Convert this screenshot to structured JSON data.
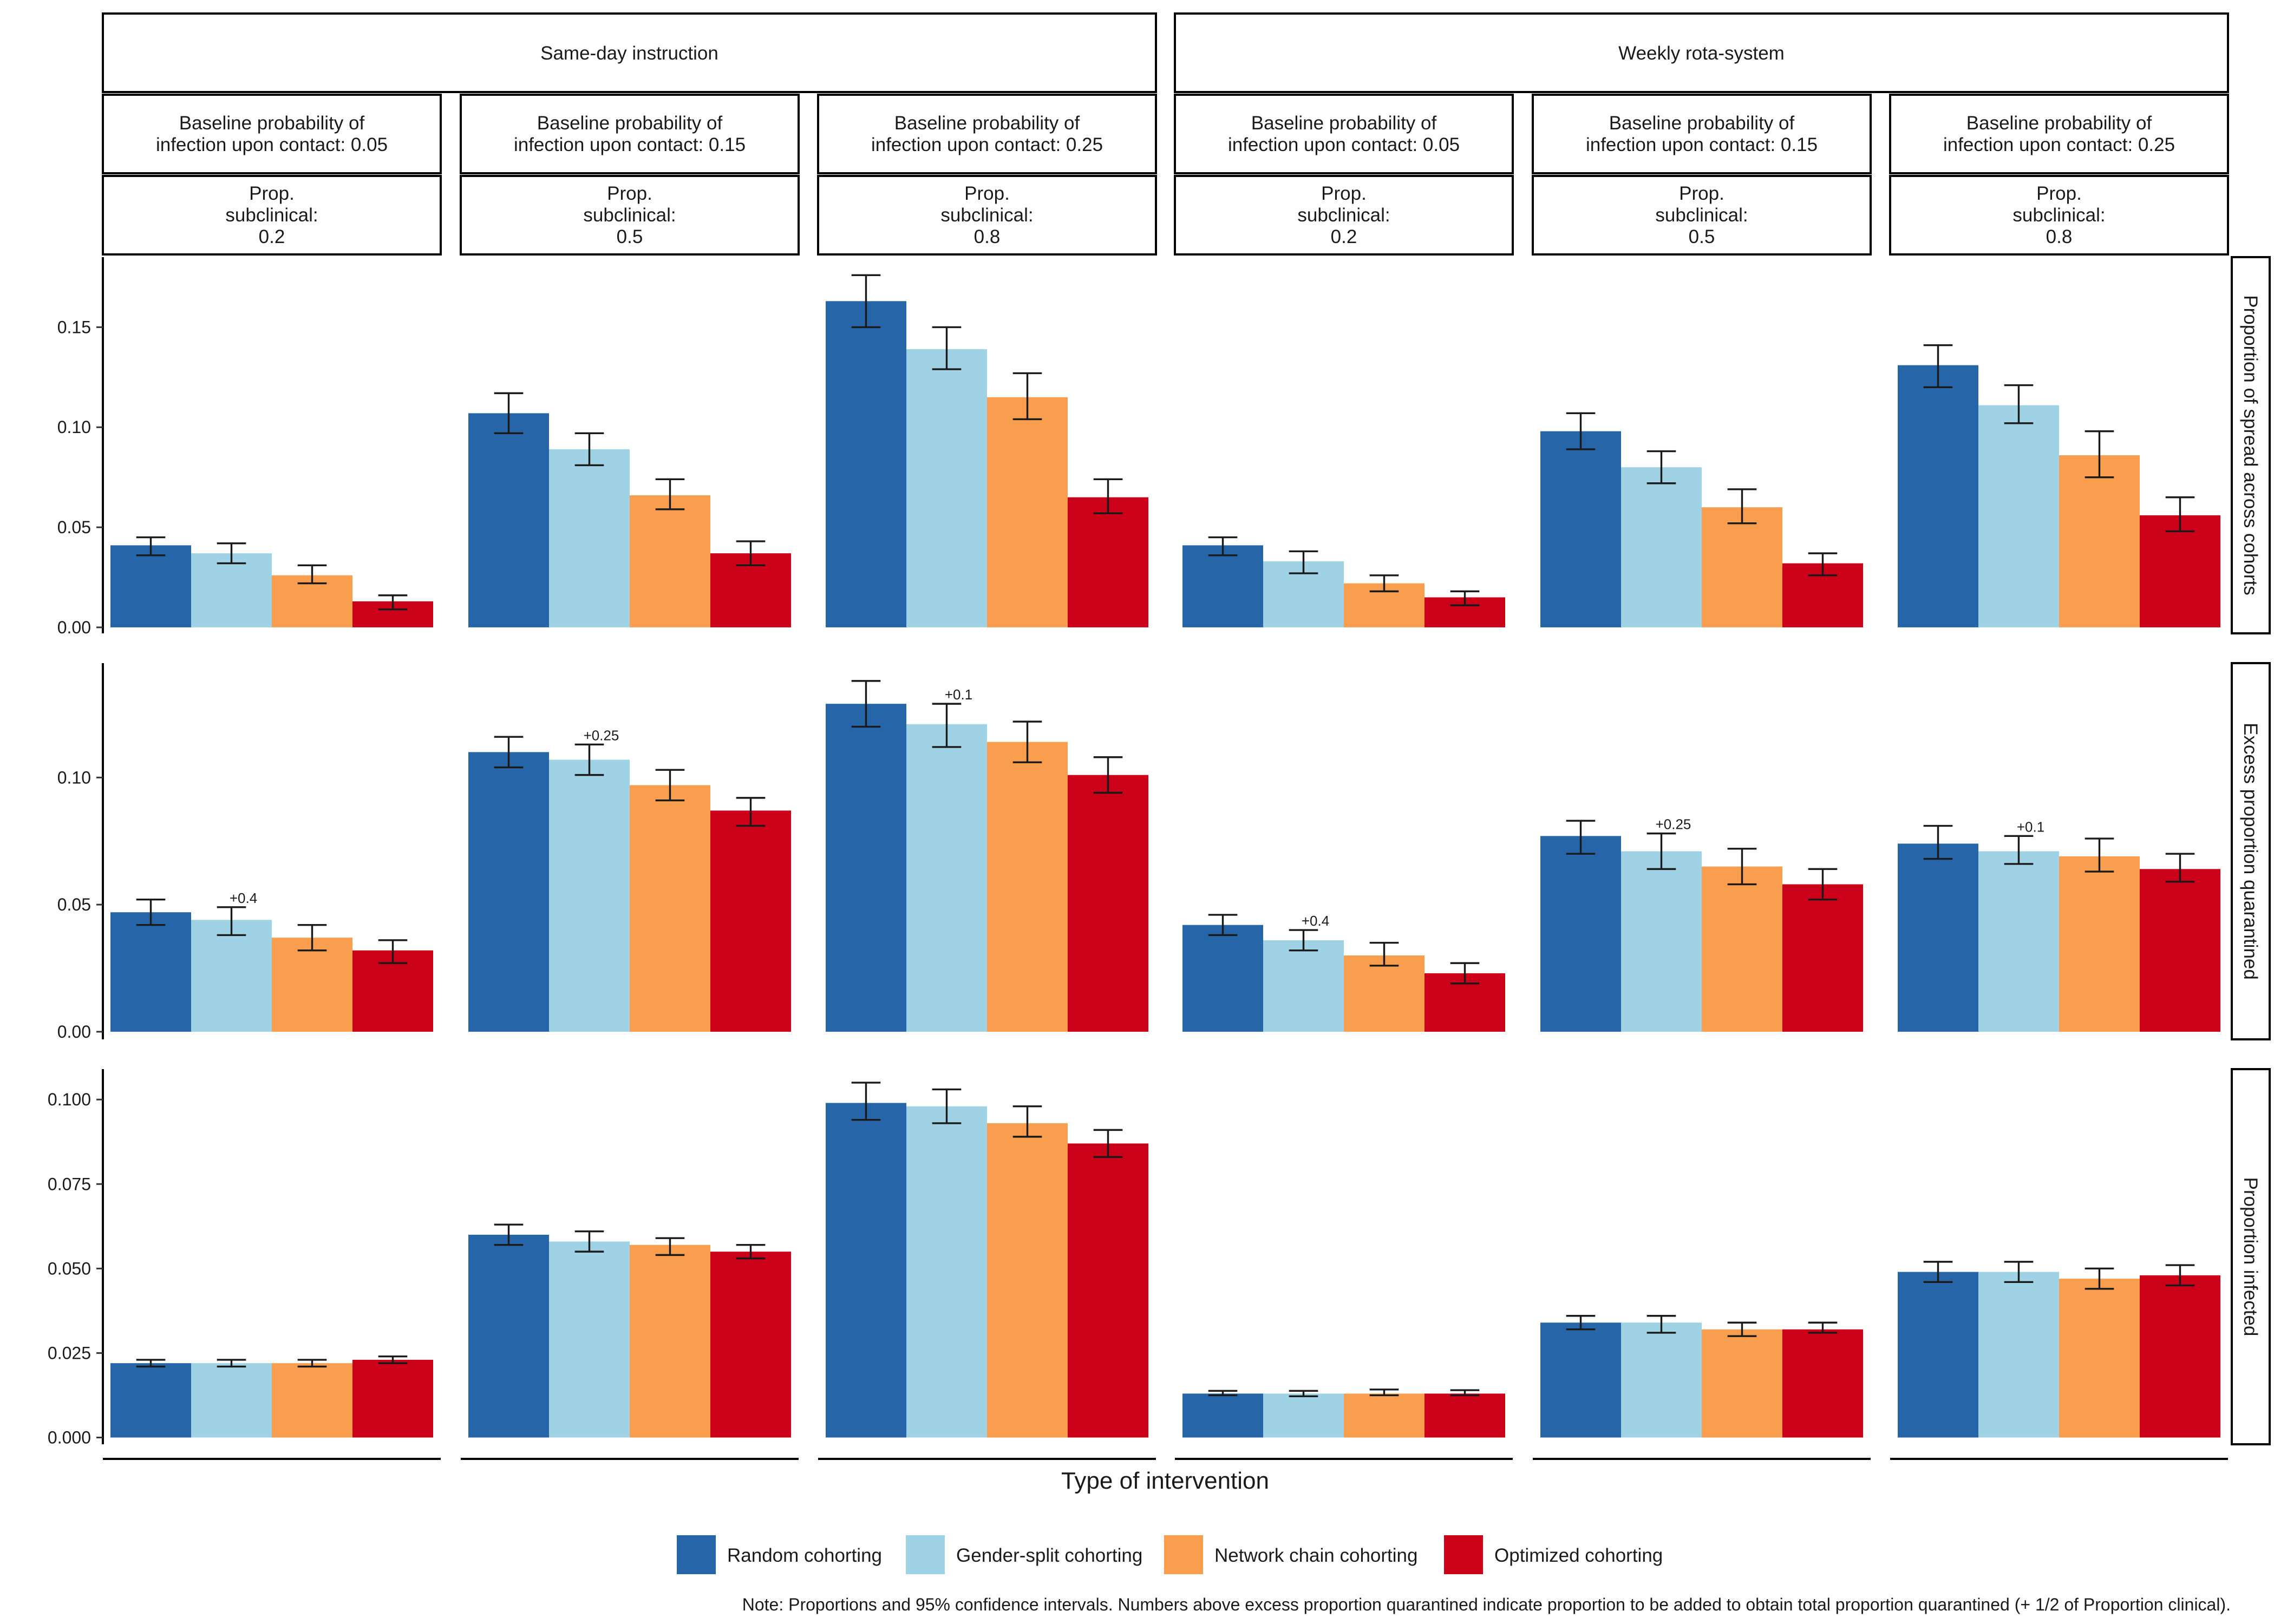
{
  "chart_data": {
    "type": "bar",
    "categories": [
      "Random cohorting",
      "Gender-split cohorting",
      "Network chain cohorting",
      "Optimized cohorting"
    ],
    "colors": [
      "#2666a8",
      "#9fd2e4",
      "#f99e4e",
      "#cb0019"
    ],
    "xlabel": "Type of intervention",
    "note": "Note: Proportions and 95% confidence intervals. Numbers above excess proportion quarantined indicate proportion to be added to obtain total proportion quarantined (+ 1/2 of Proportion clinical).",
    "groups": [
      {
        "label": "Same-day instruction"
      },
      {
        "label": "Weekly rota-system"
      }
    ],
    "columns": [
      {
        "group": 0,
        "prob_label": "Baseline probability of\ninfection upon contact: 0.05",
        "subclin_label": "Prop.\nsubclinical:\n0.2"
      },
      {
        "group": 0,
        "prob_label": "Baseline probability of\ninfection upon contact: 0.15",
        "subclin_label": "Prop.\nsubclinical:\n0.5"
      },
      {
        "group": 0,
        "prob_label": "Baseline probability of\ninfection upon contact: 0.25",
        "subclin_label": "Prop.\nsubclinical:\n0.8"
      },
      {
        "group": 1,
        "prob_label": "Baseline probability of\ninfection upon contact: 0.05",
        "subclin_label": "Prop.\nsubclinical:\n0.2"
      },
      {
        "group": 1,
        "prob_label": "Baseline probability of\ninfection upon contact: 0.15",
        "subclin_label": "Prop.\nsubclinical:\n0.5"
      },
      {
        "group": 1,
        "prob_label": "Baseline probability of\ninfection upon contact: 0.25",
        "subclin_label": "Prop.\nsubclinical:\n0.8"
      }
    ],
    "rows": [
      {
        "label": "Proportion of spread across cohorts",
        "ylim": [
          -0.003,
          0.185
        ],
        "ticks": [
          0.0,
          0.05,
          0.1,
          0.15
        ],
        "tick_labels": [
          "0.00",
          "0.05",
          "0.10",
          "0.15"
        ],
        "values": [
          [
            0.041,
            0.037,
            0.026,
            0.013
          ],
          [
            0.107,
            0.089,
            0.066,
            0.037
          ],
          [
            0.163,
            0.139,
            0.115,
            0.065
          ],
          [
            0.041,
            0.033,
            0.022,
            0.015
          ],
          [
            0.098,
            0.08,
            0.06,
            0.032
          ],
          [
            0.131,
            0.111,
            0.086,
            0.056
          ]
        ],
        "errors": [
          [
            [
              0.036,
              0.045
            ],
            [
              0.032,
              0.042
            ],
            [
              0.022,
              0.031
            ],
            [
              0.009,
              0.016
            ]
          ],
          [
            [
              0.097,
              0.117
            ],
            [
              0.081,
              0.097
            ],
            [
              0.059,
              0.074
            ],
            [
              0.031,
              0.043
            ]
          ],
          [
            [
              0.15,
              0.176
            ],
            [
              0.129,
              0.15
            ],
            [
              0.104,
              0.127
            ],
            [
              0.057,
              0.074
            ]
          ],
          [
            [
              0.036,
              0.045
            ],
            [
              0.027,
              0.038
            ],
            [
              0.018,
              0.026
            ],
            [
              0.011,
              0.018
            ]
          ],
          [
            [
              0.089,
              0.107
            ],
            [
              0.072,
              0.088
            ],
            [
              0.052,
              0.069
            ],
            [
              0.026,
              0.037
            ]
          ],
          [
            [
              0.12,
              0.141
            ],
            [
              0.102,
              0.121
            ],
            [
              0.075,
              0.098
            ],
            [
              0.048,
              0.065
            ]
          ]
        ],
        "annotations": [
          "",
          "",
          "",
          "",
          "",
          ""
        ]
      },
      {
        "label": "Excess proportion quarantined",
        "ylim": [
          -0.003,
          0.145
        ],
        "ticks": [
          0.0,
          0.05,
          0.1
        ],
        "tick_labels": [
          "0.00",
          "0.05",
          "0.10"
        ],
        "values": [
          [
            0.047,
            0.044,
            0.037,
            0.032
          ],
          [
            0.11,
            0.107,
            0.097,
            0.087
          ],
          [
            0.129,
            0.121,
            0.114,
            0.101
          ],
          [
            0.042,
            0.036,
            0.03,
            0.023
          ],
          [
            0.077,
            0.071,
            0.065,
            0.058
          ],
          [
            0.074,
            0.071,
            0.069,
            0.064
          ]
        ],
        "errors": [
          [
            [
              0.042,
              0.052
            ],
            [
              0.038,
              0.049
            ],
            [
              0.032,
              0.042
            ],
            [
              0.027,
              0.036
            ]
          ],
          [
            [
              0.104,
              0.116
            ],
            [
              0.101,
              0.113
            ],
            [
              0.091,
              0.103
            ],
            [
              0.081,
              0.092
            ]
          ],
          [
            [
              0.12,
              0.138
            ],
            [
              0.112,
              0.129
            ],
            [
              0.106,
              0.122
            ],
            [
              0.094,
              0.108
            ]
          ],
          [
            [
              0.038,
              0.046
            ],
            [
              0.032,
              0.04
            ],
            [
              0.026,
              0.035
            ],
            [
              0.019,
              0.027
            ]
          ],
          [
            [
              0.07,
              0.083
            ],
            [
              0.064,
              0.078
            ],
            [
              0.058,
              0.072
            ],
            [
              0.052,
              0.064
            ]
          ],
          [
            [
              0.068,
              0.081
            ],
            [
              0.066,
              0.077
            ],
            [
              0.063,
              0.076
            ],
            [
              0.059,
              0.07
            ]
          ]
        ],
        "annotations": [
          "+0.4",
          "+0.25",
          "+0.1",
          "+0.4",
          "+0.25",
          "+0.1"
        ]
      },
      {
        "label": "Proportion infected",
        "ylim": [
          -0.002,
          0.109
        ],
        "ticks": [
          0.0,
          0.025,
          0.05,
          0.075,
          0.1
        ],
        "tick_labels": [
          "0.000",
          "0.025",
          "0.050",
          "0.075",
          "0.100"
        ],
        "values": [
          [
            0.022,
            0.022,
            0.022,
            0.023
          ],
          [
            0.06,
            0.058,
            0.057,
            0.055
          ],
          [
            0.099,
            0.098,
            0.093,
            0.087
          ],
          [
            0.013,
            0.013,
            0.013,
            0.013
          ],
          [
            0.034,
            0.034,
            0.032,
            0.032
          ],
          [
            0.049,
            0.049,
            0.047,
            0.048
          ]
        ],
        "errors": [
          [
            [
              0.021,
              0.023
            ],
            [
              0.021,
              0.023
            ],
            [
              0.021,
              0.023
            ],
            [
              0.022,
              0.024
            ]
          ],
          [
            [
              0.057,
              0.063
            ],
            [
              0.055,
              0.061
            ],
            [
              0.054,
              0.059
            ],
            [
              0.053,
              0.057
            ]
          ],
          [
            [
              0.094,
              0.105
            ],
            [
              0.093,
              0.103
            ],
            [
              0.089,
              0.098
            ],
            [
              0.083,
              0.091
            ]
          ],
          [
            [
              0.0125,
              0.0138
            ],
            [
              0.0122,
              0.0138
            ],
            [
              0.0125,
              0.0142
            ],
            [
              0.0125,
              0.014
            ]
          ],
          [
            [
              0.032,
              0.036
            ],
            [
              0.031,
              0.036
            ],
            [
              0.03,
              0.034
            ],
            [
              0.031,
              0.034
            ]
          ],
          [
            [
              0.046,
              0.052
            ],
            [
              0.046,
              0.052
            ],
            [
              0.044,
              0.05
            ],
            [
              0.045,
              0.051
            ]
          ]
        ],
        "annotations": [
          "",
          "",
          "",
          "",
          "",
          ""
        ]
      }
    ]
  }
}
